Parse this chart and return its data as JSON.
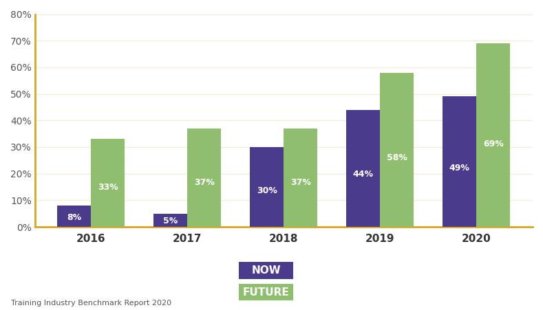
{
  "years": [
    "2016",
    "2017",
    "2018",
    "2019",
    "2020"
  ],
  "now_values": [
    8,
    5,
    30,
    44,
    49
  ],
  "future_values": [
    33,
    37,
    37,
    58,
    69
  ],
  "now_color": "#4B3B8C",
  "future_color": "#8FBF6E",
  "bar_width": 0.35,
  "ylim": [
    0,
    80
  ],
  "yticks": [
    0,
    10,
    20,
    30,
    40,
    50,
    60,
    70,
    80
  ],
  "ytick_labels": [
    "0%",
    "10%",
    "20%",
    "30%",
    "40%",
    "50%",
    "60%",
    "70%",
    "80%"
  ],
  "axis_left_color": "#DAA520",
  "axis_bottom_color": "#DAA520",
  "grid_color": "#F5EDD8",
  "legend_now_label": "NOW",
  "legend_future_label": "FUTURE",
  "source_text": "Training Industry Benchmark Report 2020",
  "label_font_color": "#FFFFFF",
  "label_fontsize": 9,
  "background_color": "#FFFFFF"
}
